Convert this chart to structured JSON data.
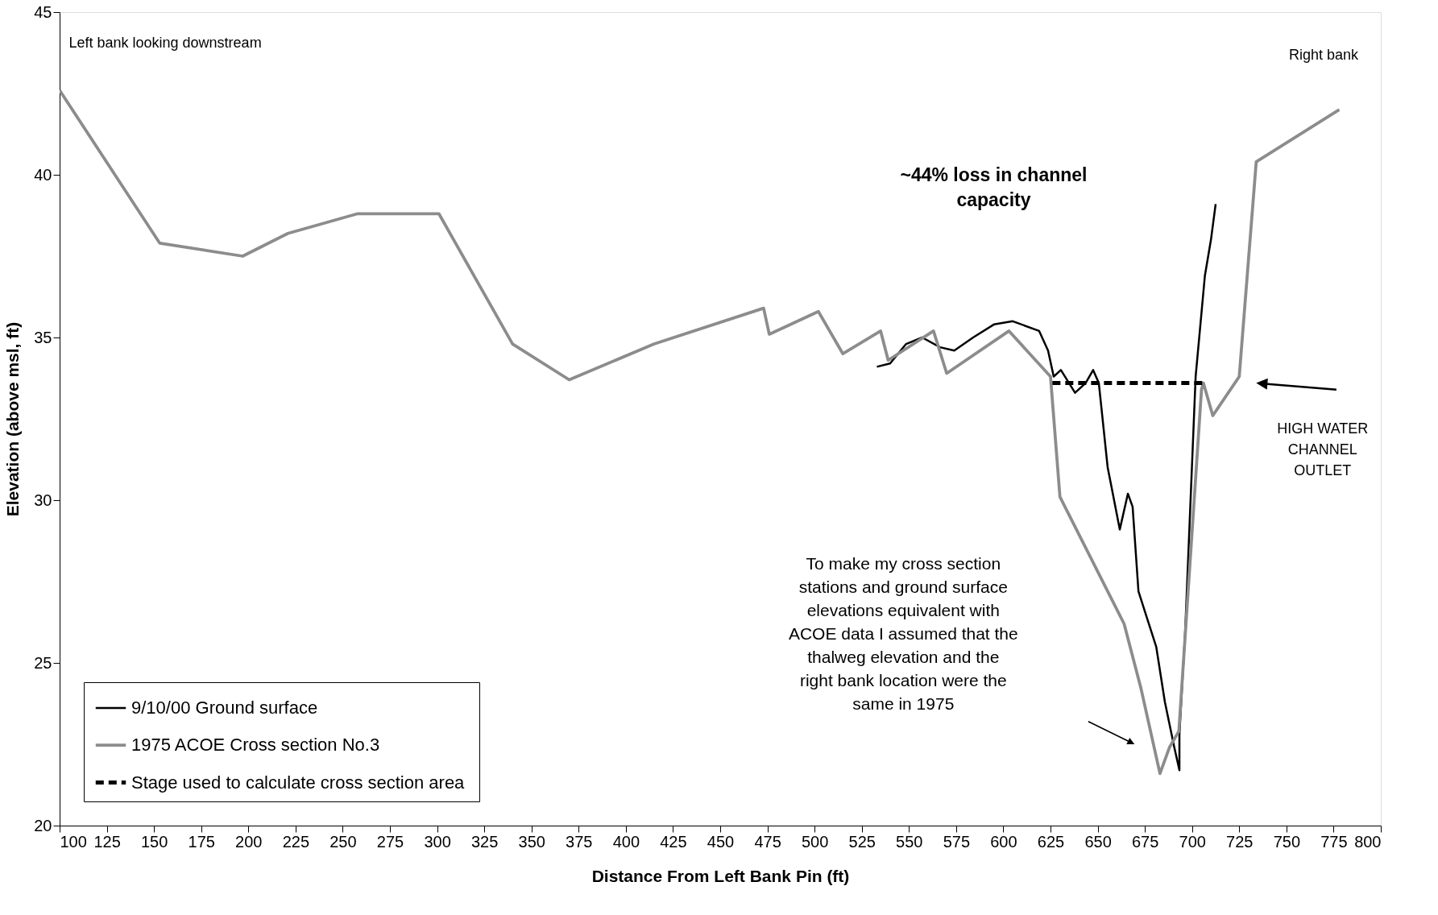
{
  "chart_data": {
    "type": "line",
    "xlabel": "Distance From Left Bank Pin (ft)",
    "ylabel": "Elevation (above msl, ft)",
    "xlim": [
      100,
      800
    ],
    "xticks": [
      100,
      125,
      150,
      175,
      200,
      225,
      250,
      275,
      300,
      325,
      350,
      375,
      400,
      425,
      450,
      475,
      500,
      525,
      550,
      575,
      600,
      625,
      650,
      675,
      700,
      725,
      750,
      775,
      800
    ],
    "ylim": [
      20,
      45
    ],
    "yticks": [
      20,
      25,
      30,
      35,
      40,
      45
    ],
    "grid": false,
    "legend": "bottom left",
    "marker": "none",
    "series": [
      {
        "name": "9/10/00 Ground surface",
        "color": "#000000",
        "line_style": "solid",
        "x": [
          533,
          540,
          548.5,
          557,
          566.5,
          574,
          584,
          595,
          605,
          619,
          623.7,
          626.7,
          630.5,
          638,
          643.6,
          647.6,
          650.6,
          655.3,
          657,
          661.7,
          666,
          668.5,
          671.6,
          676,
          681,
          685.6,
          690.6,
          693.3,
          693.3,
          696.3,
          701.9,
          706.8,
          710,
          712.5
        ],
        "values": [
          34.1,
          34.2,
          34.8,
          35.0,
          34.7,
          34.6,
          35.0,
          35.4,
          35.5,
          35.2,
          34.6,
          33.8,
          34.0,
          33.3,
          33.6,
          34.0,
          33.6,
          31.0,
          30.5,
          29.1,
          30.2,
          29.8,
          27.2,
          26.4,
          25.5,
          23.8,
          22.4,
          21.7,
          22.8,
          25.9,
          33.8,
          36.9,
          38.0,
          39.1
        ]
      },
      {
        "name": "1975 ACOE Cross section No.3",
        "color": "#8c8c8c",
        "line_style": "solid",
        "x": [
          100,
          153,
          197,
          221,
          257.6,
          301,
          340,
          370,
          415,
          473,
          476,
          502,
          515,
          535,
          539,
          563,
          570,
          603,
          625,
          630,
          664,
          673,
          683,
          688,
          693,
          705,
          706,
          711,
          725,
          734,
          778
        ],
        "values": [
          42.6,
          37.9,
          37.5,
          38.2,
          38.8,
          38.8,
          34.8,
          33.7,
          34.8,
          35.9,
          35.1,
          35.8,
          34.5,
          35.2,
          34.3,
          35.2,
          33.9,
          35.2,
          33.8,
          30.1,
          26.2,
          24.2,
          21.6,
          22.4,
          22.9,
          33.4,
          33.6,
          32.6,
          33.8,
          40.4,
          42.0
        ]
      },
      {
        "name": "Stage used to calculate  cross section area",
        "color": "#000000",
        "line_style": "dashed",
        "x": [
          626,
          707
        ],
        "values": [
          33.6,
          33.6
        ]
      }
    ],
    "annotations": [
      "Left bank looking downstream",
      "Right bank",
      "~44% loss in channel capacity",
      "To make my cross section stations and ground surface elevations equivalent with ACOE data I assumed that the thalweg elevation and the right bank location were the same in 1975",
      "HIGH WATER CHANNEL OUTLET"
    ]
  }
}
